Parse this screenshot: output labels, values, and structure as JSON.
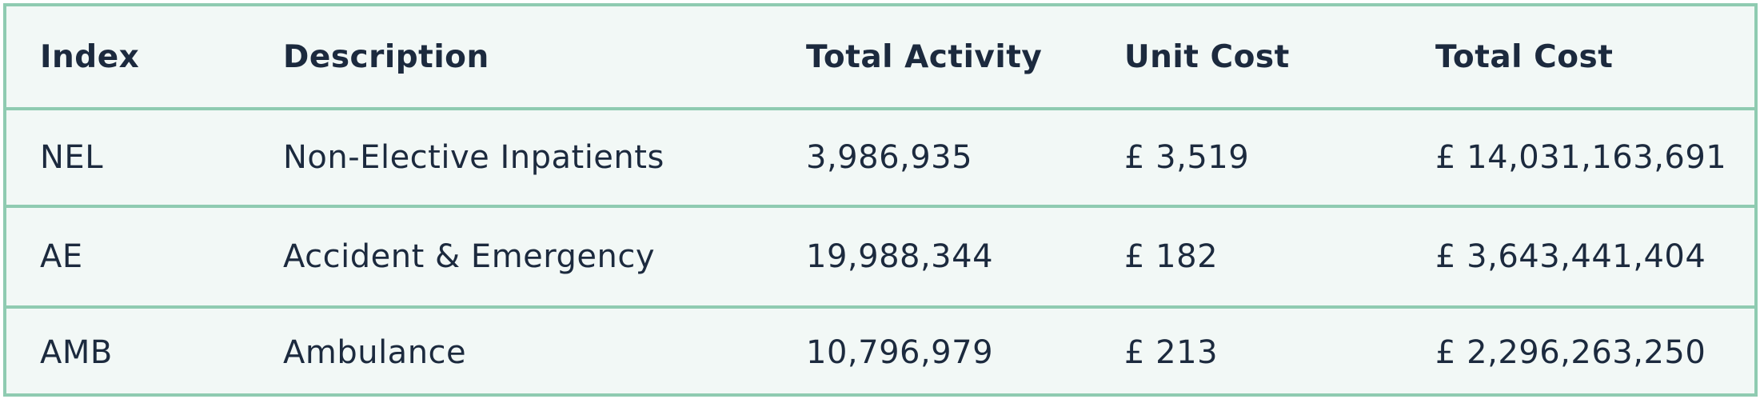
{
  "table": {
    "headers": [
      "Index",
      "Description",
      "Total Activity",
      "Unit Cost",
      "Total Cost"
    ],
    "rows": [
      [
        "NEL",
        "Non-Elective Inpatients",
        "3,986,935",
        "£ 3,519",
        "£ 14,031,163,691"
      ],
      [
        "AE",
        "Accident & Emergency",
        "19,988,344",
        "£ 182",
        "£ 3,643,441,404"
      ],
      [
        "AMB",
        "Ambulance",
        "10,796,979",
        "£ 213",
        "£ 2,296,263,250"
      ]
    ]
  },
  "colors": {
    "border": "#8fcbb1",
    "background": "#f2f8f6",
    "text": "#1c2a3e"
  }
}
